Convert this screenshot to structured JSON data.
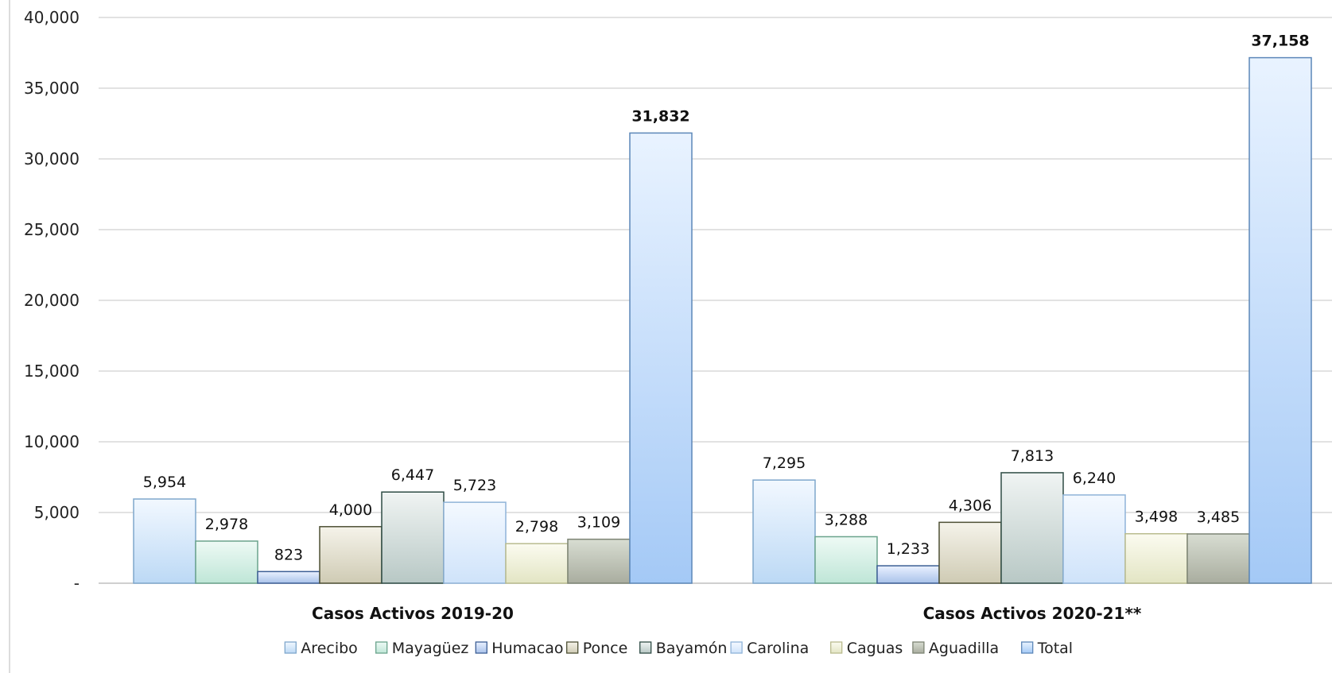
{
  "chart_data": {
    "type": "bar",
    "categories": [
      "Casos Activos 2019-20",
      "Casos Activos 2020-21**"
    ],
    "series": [
      {
        "name": "Arecibo",
        "values": [
          5954,
          7295
        ]
      },
      {
        "name": "Mayagüez",
        "values": [
          2978,
          3288
        ]
      },
      {
        "name": "Humacao",
        "values": [
          823,
          1233
        ]
      },
      {
        "name": "Ponce",
        "values": [
          4000,
          4306
        ]
      },
      {
        "name": "Bayamón",
        "values": [
          6447,
          7813
        ]
      },
      {
        "name": "Carolina",
        "values": [
          5723,
          6240
        ]
      },
      {
        "name": "Caguas",
        "values": [
          2798,
          3498
        ]
      },
      {
        "name": "Aguadilla",
        "values": [
          3109,
          3485
        ]
      },
      {
        "name": "Total",
        "values": [
          31832,
          37158
        ]
      }
    ],
    "data_labels": [
      [
        "5,954",
        "7,295"
      ],
      [
        "2,978",
        "3,288"
      ],
      [
        "823",
        "1,233"
      ],
      [
        "4,000",
        "4,306"
      ],
      [
        "6,447",
        "7,813"
      ],
      [
        "5,723",
        "6,240"
      ],
      [
        "2,798",
        "3,498"
      ],
      [
        "3,109",
        "3,485"
      ],
      [
        "31,832",
        "37,158"
      ]
    ],
    "ylim": [
      0,
      40000
    ],
    "yticks": [
      0,
      5000,
      10000,
      15000,
      20000,
      25000,
      30000,
      35000,
      40000
    ],
    "ytick_labels": [
      "-",
      "5,000",
      "10,000",
      "15,000",
      "20,000",
      "25,000",
      "30,000",
      "35,000",
      "40,000"
    ],
    "grid": true,
    "legend": "bottom",
    "colors": {
      "Arecibo": [
        "#f2f8ff",
        "#bcd9f5",
        "#7fa7cc"
      ],
      "Mayagüez": [
        "#eefaf5",
        "#bfe6d7",
        "#6aa38c"
      ],
      "Humacao": [
        "#eaf1ff",
        "#a9c2ea",
        "#3d5f95"
      ],
      "Ponce": [
        "#f5f3ea",
        "#cfcbb4",
        "#4e5035"
      ],
      "Bayamón": [
        "#f0f4f3",
        "#b8c8c5",
        "#2f4c45"
      ],
      "Carolina": [
        "#f4f9ff",
        "#cfe3fa",
        "#8fb3d8"
      ],
      "Caguas": [
        "#fbfbf0",
        "#e3e5c4",
        "#b9bb8e"
      ],
      "Aguadilla": [
        "#d8ddd2",
        "#a9ad9f",
        "#7d8474"
      ],
      "Total": [
        "#e9f3ff",
        "#a4c9f6",
        "#5c87b8"
      ]
    }
  }
}
